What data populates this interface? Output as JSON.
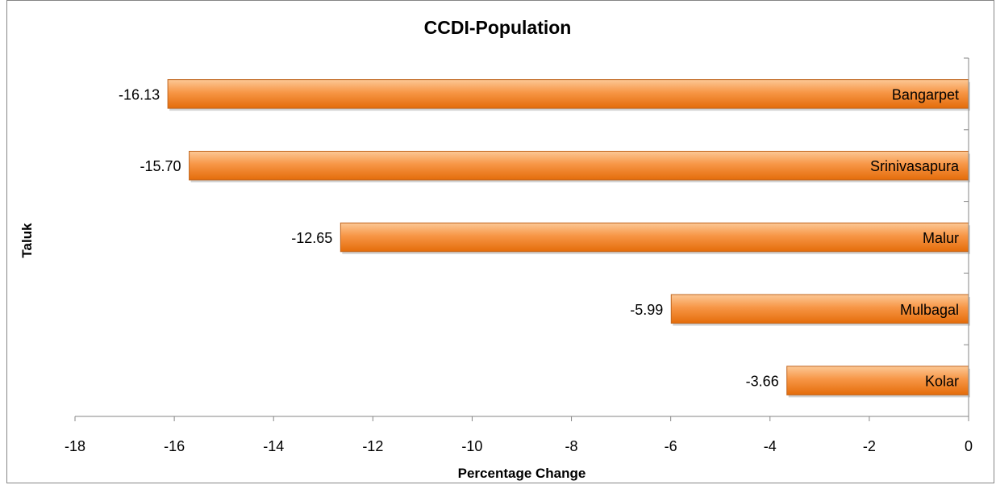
{
  "chart_data": {
    "type": "bar",
    "orientation": "horizontal",
    "title": "CCDI-Population",
    "xlabel": "Percentage Change",
    "ylabel": "Taluk",
    "categories": [
      "Bangarpet",
      "Srinivasapura",
      "Malur",
      "Mulbagal",
      "Kolar"
    ],
    "values": [
      -16.13,
      -15.7,
      -12.65,
      -5.99,
      -3.66
    ],
    "data_labels": [
      "-16.13",
      "-15.70",
      "-12.65",
      "-5.99",
      "-3.66"
    ],
    "xlim": [
      -18,
      0
    ],
    "xticks": [
      -18,
      -16,
      -14,
      -12,
      -10,
      -8,
      -6,
      -4,
      -2,
      0
    ],
    "xtick_labels": [
      "-18",
      "-16",
      "-14",
      "-12",
      "-10",
      "-8",
      "-6",
      "-4",
      "-2",
      "0"
    ],
    "bar_color": "#f79646",
    "bar_color_light": "#fcc896",
    "bar_color_dark": "#e46c0a",
    "grid": false,
    "legend": "none"
  }
}
